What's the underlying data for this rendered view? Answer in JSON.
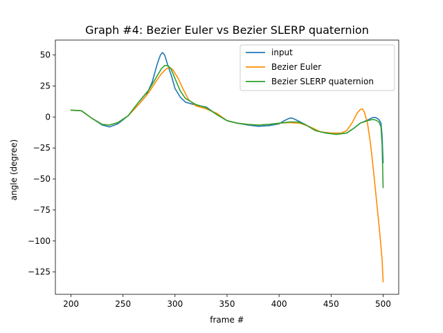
{
  "chart_data": {
    "type": "line",
    "title": "Graph #4: Bezier Euler vs Bezier SLERP quaternion",
    "xlabel": "frame #",
    "ylabel": "angle (degree)",
    "xlim": [
      185,
      515
    ],
    "ylim": [
      -143,
      62
    ],
    "xticks": [
      200,
      250,
      300,
      350,
      400,
      450,
      500
    ],
    "yticks": [
      50,
      25,
      0,
      -25,
      -50,
      -75,
      -100,
      -125
    ],
    "grid": false,
    "legend_position": "top-right",
    "series": [
      {
        "name": "input",
        "color": "#1f77b4",
        "points": [
          [
            200,
            5.5
          ],
          [
            210,
            5
          ],
          [
            220,
            -1
          ],
          [
            230,
            -6.5
          ],
          [
            237,
            -8
          ],
          [
            245,
            -5.5
          ],
          [
            255,
            1
          ],
          [
            265,
            10
          ],
          [
            272,
            17
          ],
          [
            278,
            28
          ],
          [
            283,
            43
          ],
          [
            286,
            50
          ],
          [
            288,
            52
          ],
          [
            290,
            50
          ],
          [
            293,
            42
          ],
          [
            297,
            32
          ],
          [
            300,
            23
          ],
          [
            305,
            16
          ],
          [
            310,
            12
          ],
          [
            320,
            9.5
          ],
          [
            330,
            8
          ],
          [
            340,
            2
          ],
          [
            350,
            -3
          ],
          [
            360,
            -5
          ],
          [
            370,
            -6.5
          ],
          [
            380,
            -7.5
          ],
          [
            390,
            -7
          ],
          [
            400,
            -5.5
          ],
          [
            405,
            -3
          ],
          [
            410,
            -1
          ],
          [
            413,
            -1
          ],
          [
            418,
            -3
          ],
          [
            425,
            -6
          ],
          [
            435,
            -11
          ],
          [
            445,
            -13
          ],
          [
            455,
            -14
          ],
          [
            465,
            -13
          ],
          [
            472,
            -9
          ],
          [
            478,
            -5
          ],
          [
            485,
            -2.5
          ],
          [
            490,
            -0.5
          ],
          [
            493,
            -0.5
          ],
          [
            496,
            -2
          ],
          [
            498,
            -5
          ],
          [
            499,
            -15
          ],
          [
            500,
            -37
          ]
        ]
      },
      {
        "name": "Bezier Euler",
        "color": "#ff8c00",
        "points": [
          [
            200,
            5.5
          ],
          [
            210,
            5
          ],
          [
            220,
            -1
          ],
          [
            230,
            -6
          ],
          [
            237,
            -6.5
          ],
          [
            245,
            -4.5
          ],
          [
            255,
            1
          ],
          [
            265,
            10
          ],
          [
            275,
            20
          ],
          [
            282,
            29
          ],
          [
            287,
            35
          ],
          [
            292,
            39
          ],
          [
            295,
            40
          ],
          [
            298,
            38
          ],
          [
            303,
            31
          ],
          [
            308,
            22
          ],
          [
            313,
            14
          ],
          [
            320,
            9
          ],
          [
            330,
            6.5
          ],
          [
            340,
            3
          ],
          [
            350,
            -3
          ],
          [
            360,
            -5
          ],
          [
            370,
            -6
          ],
          [
            380,
            -6.5
          ],
          [
            390,
            -6
          ],
          [
            400,
            -5
          ],
          [
            410,
            -4.5
          ],
          [
            420,
            -5
          ],
          [
            430,
            -8
          ],
          [
            440,
            -12
          ],
          [
            450,
            -13
          ],
          [
            460,
            -13
          ],
          [
            465,
            -11
          ],
          [
            470,
            -5
          ],
          [
            475,
            3
          ],
          [
            478,
            6
          ],
          [
            480,
            6.5
          ],
          [
            482,
            4
          ],
          [
            485,
            -5
          ],
          [
            488,
            -22
          ],
          [
            491,
            -45
          ],
          [
            494,
            -70
          ],
          [
            497,
            -95
          ],
          [
            499,
            -115
          ],
          [
            500,
            -133
          ]
        ]
      },
      {
        "name": "Bezier SLERP quaternion",
        "color": "#2ca02c",
        "points": [
          [
            200,
            5.5
          ],
          [
            210,
            5
          ],
          [
            220,
            -1
          ],
          [
            230,
            -6
          ],
          [
            237,
            -6.5
          ],
          [
            245,
            -4.5
          ],
          [
            255,
            1
          ],
          [
            265,
            12
          ],
          [
            275,
            22
          ],
          [
            282,
            32
          ],
          [
            287,
            39
          ],
          [
            290,
            41.5
          ],
          [
            293,
            41.5
          ],
          [
            296,
            39
          ],
          [
            300,
            31
          ],
          [
            305,
            21
          ],
          [
            310,
            15
          ],
          [
            320,
            10
          ],
          [
            330,
            7.5
          ],
          [
            340,
            2
          ],
          [
            350,
            -3
          ],
          [
            360,
            -5
          ],
          [
            370,
            -6
          ],
          [
            380,
            -6.5
          ],
          [
            390,
            -6
          ],
          [
            400,
            -5
          ],
          [
            410,
            -4
          ],
          [
            418,
            -4
          ],
          [
            425,
            -6
          ],
          [
            435,
            -11
          ],
          [
            445,
            -13
          ],
          [
            455,
            -14
          ],
          [
            465,
            -13
          ],
          [
            472,
            -9
          ],
          [
            478,
            -5
          ],
          [
            485,
            -3
          ],
          [
            490,
            -2
          ],
          [
            493,
            -2.5
          ],
          [
            496,
            -4
          ],
          [
            498,
            -8
          ],
          [
            499,
            -22
          ],
          [
            500,
            -57
          ]
        ]
      }
    ]
  }
}
